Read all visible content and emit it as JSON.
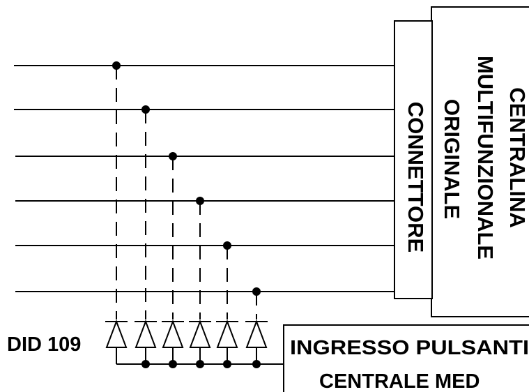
{
  "labels": {
    "component": "DID 109",
    "connector": "CONNETTORE",
    "unit_line1": "CENTRALINA",
    "unit_line2": "MULTIFUNZIONALE",
    "unit_line3": "ORIGINALE",
    "input_line1": "INGRESSO PULSANTI",
    "input_line2": "CENTRALE MED"
  },
  "wires": [
    {
      "id": "wire-1"
    },
    {
      "id": "wire-2"
    },
    {
      "id": "wire-3"
    },
    {
      "id": "wire-4"
    },
    {
      "id": "wire-5"
    },
    {
      "id": "wire-6"
    }
  ],
  "diodes": [
    {
      "id": "diode-1"
    },
    {
      "id": "diode-2"
    },
    {
      "id": "diode-3"
    },
    {
      "id": "diode-4"
    },
    {
      "id": "diode-5"
    },
    {
      "id": "diode-6"
    }
  ],
  "colors": {
    "ink": "#000000",
    "background": "#ffffff"
  }
}
